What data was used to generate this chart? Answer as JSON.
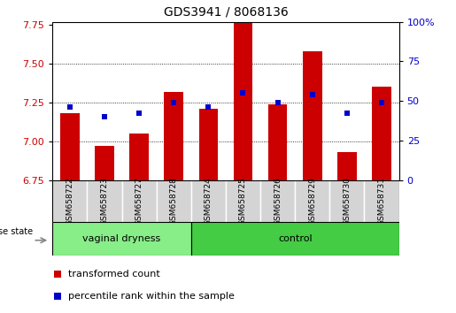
{
  "title": "GDS3941 / 8068136",
  "samples": [
    "GSM658722",
    "GSM658723",
    "GSM658727",
    "GSM658728",
    "GSM658724",
    "GSM658725",
    "GSM658726",
    "GSM658729",
    "GSM658730",
    "GSM658731"
  ],
  "red_values": [
    7.18,
    6.97,
    7.05,
    7.32,
    7.21,
    7.77,
    7.24,
    7.58,
    6.93,
    7.35
  ],
  "blue_values": [
    7.22,
    7.16,
    7.18,
    7.25,
    7.22,
    7.31,
    7.25,
    7.3,
    7.18,
    7.25
  ],
  "ylim_left": [
    6.75,
    7.77
  ],
  "ylim_right": [
    0,
    100
  ],
  "yticks_left": [
    6.75,
    7.0,
    7.25,
    7.5,
    7.75
  ],
  "yticks_right": [
    0,
    25,
    50,
    75,
    100
  ],
  "ytick_right_labels": [
    "0",
    "25",
    "50",
    "75",
    "100%"
  ],
  "group_vaginal": [
    0,
    1,
    2,
    3
  ],
  "group_control": [
    4,
    5,
    6,
    7,
    8,
    9
  ],
  "group_labels": [
    "vaginal dryness",
    "control"
  ],
  "bar_color": "#cc0000",
  "dot_color": "#0000cc",
  "bg_color_vaginal": "#88ee88",
  "bg_color_control": "#44cc44",
  "legend_red_label": "transformed count",
  "legend_blue_label": "percentile rank within the sample",
  "bar_width": 0.55,
  "base_value": 6.75,
  "grid_yticks": [
    7.0,
    7.25,
    7.5
  ]
}
